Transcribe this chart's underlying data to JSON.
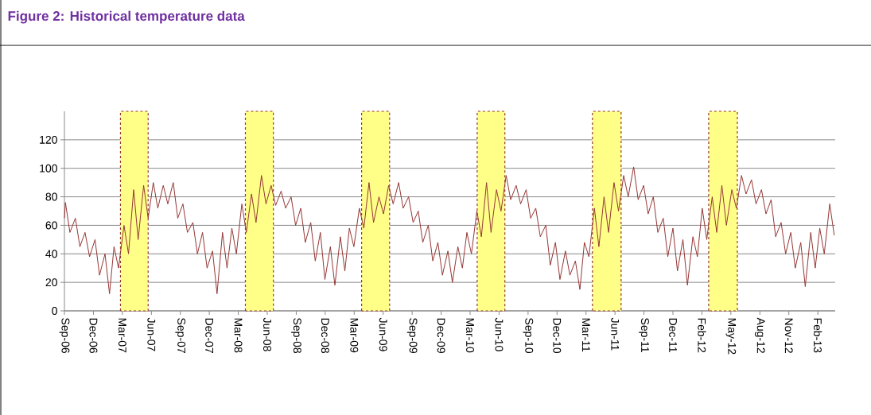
{
  "chart_data": {
    "type": "line",
    "title": "Figure 2: Historical temperature data",
    "x": [
      "2006-09-28",
      "2006-10-01",
      "2006-10-15",
      "2006-11-01",
      "2006-11-15",
      "2006-12-01",
      "2006-12-15",
      "2007-01-01",
      "2007-01-15",
      "2007-02-01",
      "2007-02-15",
      "2007-03-01",
      "2007-03-15",
      "2007-04-01",
      "2007-04-15",
      "2007-05-01",
      "2007-05-15",
      "2007-06-01",
      "2007-06-15",
      "2007-07-01",
      "2007-07-15",
      "2007-08-01",
      "2007-08-15",
      "2007-09-01",
      "2007-09-15",
      "2007-10-01",
      "2007-10-15",
      "2007-11-01",
      "2007-11-15",
      "2007-12-01",
      "2007-12-15",
      "2008-01-01",
      "2008-01-15",
      "2008-02-01",
      "2008-02-15",
      "2008-03-01",
      "2008-03-15",
      "2008-04-01",
      "2008-04-15",
      "2008-05-01",
      "2008-05-15",
      "2008-06-01",
      "2008-06-15",
      "2008-07-01",
      "2008-07-15",
      "2008-08-01",
      "2008-08-15",
      "2008-09-01",
      "2008-09-15",
      "2008-10-01",
      "2008-10-15",
      "2008-11-01",
      "2008-11-15",
      "2008-12-01",
      "2008-12-15",
      "2009-01-01",
      "2009-01-15",
      "2009-02-01",
      "2009-02-15",
      "2009-03-01",
      "2009-03-15",
      "2009-04-01",
      "2009-04-15",
      "2009-05-01",
      "2009-05-15",
      "2009-06-01",
      "2009-06-15",
      "2009-07-01",
      "2009-07-15",
      "2009-08-01",
      "2009-08-15",
      "2009-09-01",
      "2009-09-15",
      "2009-10-01",
      "2009-10-15",
      "2009-11-01",
      "2009-11-15",
      "2009-12-01",
      "2009-12-15",
      "2010-01-01",
      "2010-01-15",
      "2010-02-01",
      "2010-02-15",
      "2010-03-01",
      "2010-03-15",
      "2010-04-01",
      "2010-04-15",
      "2010-05-01",
      "2010-05-15",
      "2010-06-01",
      "2010-06-15",
      "2010-07-01",
      "2010-07-15",
      "2010-08-01",
      "2010-08-15",
      "2010-09-01",
      "2010-09-15",
      "2010-10-01",
      "2010-10-15",
      "2010-11-01",
      "2010-11-15",
      "2010-12-01",
      "2010-12-15",
      "2011-01-01",
      "2011-01-15",
      "2011-02-01",
      "2011-02-15",
      "2011-03-01",
      "2011-03-15",
      "2011-04-01",
      "2011-04-15",
      "2011-05-01",
      "2011-05-15",
      "2011-06-01",
      "2011-06-15",
      "2011-07-01",
      "2011-07-15",
      "2011-08-01",
      "2011-08-15",
      "2011-09-01",
      "2011-09-15",
      "2011-10-01",
      "2011-10-15",
      "2011-11-01",
      "2011-11-15",
      "2011-12-01",
      "2011-12-15",
      "2012-01-01",
      "2012-01-15",
      "2012-02-01",
      "2012-02-15",
      "2012-03-01",
      "2012-03-15",
      "2012-04-01",
      "2012-04-15",
      "2012-05-01",
      "2012-05-15",
      "2012-06-01",
      "2012-06-15",
      "2012-07-01",
      "2012-07-15",
      "2012-08-01",
      "2012-08-15",
      "2012-09-01",
      "2012-09-15",
      "2012-10-01",
      "2012-10-15",
      "2012-11-01",
      "2012-11-15",
      "2012-12-01",
      "2012-12-15",
      "2013-01-01",
      "2013-01-15",
      "2013-02-01",
      "2013-02-15",
      "2013-03-01",
      "2013-03-15",
      "2013-04-01",
      "2013-04-15"
    ],
    "series": [
      {
        "color": "#943634",
        "values": [
          65,
          76,
          55,
          65,
          45,
          55,
          38,
          50,
          25,
          40,
          12,
          45,
          30,
          60,
          40,
          85,
          50,
          88,
          65,
          90,
          72,
          88,
          75,
          90,
          65,
          75,
          55,
          62,
          40,
          55,
          30,
          42,
          12,
          55,
          30,
          58,
          40,
          75,
          55,
          82,
          62,
          95,
          75,
          88,
          74,
          84,
          72,
          80,
          60,
          72,
          48,
          62,
          35,
          55,
          22,
          45,
          18,
          52,
          28,
          58,
          45,
          72,
          58,
          90,
          62,
          80,
          68,
          88,
          75,
          90,
          72,
          80,
          62,
          70,
          48,
          60,
          35,
          48,
          25,
          42,
          20,
          45,
          30,
          55,
          40,
          70,
          52,
          90,
          55,
          85,
          70,
          95,
          78,
          88,
          75,
          85,
          65,
          72,
          52,
          60,
          32,
          48,
          22,
          42,
          25,
          35,
          15,
          48,
          38,
          72,
          45,
          80,
          55,
          90,
          70,
          95,
          80,
          101,
          78,
          88,
          68,
          80,
          55,
          65,
          38,
          58,
          28,
          50,
          18,
          52,
          38,
          72,
          50,
          80,
          55,
          88,
          60,
          85,
          72,
          95,
          82,
          92,
          75,
          85,
          68,
          78,
          52,
          62,
          40,
          55,
          30,
          48,
          17,
          55,
          30,
          58,
          40,
          75,
          53
        ]
      }
    ],
    "xlim": [
      "2006-09-28",
      "2013-04-18"
    ],
    "xticks": [
      {
        "value": "2006-09-28",
        "label": "Sep-06"
      },
      {
        "value": "2006-12-27",
        "label": "Dec-06"
      },
      {
        "value": "2007-03-27",
        "label": "Mar-07"
      },
      {
        "value": "2007-06-25",
        "label": "Jun-07"
      },
      {
        "value": "2007-09-23",
        "label": "Sep-07"
      },
      {
        "value": "2007-12-22",
        "label": "Dec-07"
      },
      {
        "value": "2008-03-21",
        "label": "Mar-08"
      },
      {
        "value": "2008-06-19",
        "label": "Jun-08"
      },
      {
        "value": "2008-09-17",
        "label": "Sep-08"
      },
      {
        "value": "2008-12-16",
        "label": "Dec-08"
      },
      {
        "value": "2009-03-16",
        "label": "Mar-09"
      },
      {
        "value": "2009-06-14",
        "label": "Jun-09"
      },
      {
        "value": "2009-09-12",
        "label": "Sep-09"
      },
      {
        "value": "2009-12-11",
        "label": "Dec-09"
      },
      {
        "value": "2010-03-11",
        "label": "Mar-10"
      },
      {
        "value": "2010-06-09",
        "label": "Jun-10"
      },
      {
        "value": "2010-09-07",
        "label": "Sep-10"
      },
      {
        "value": "2010-12-06",
        "label": "Dec-10"
      },
      {
        "value": "2011-03-06",
        "label": "Mar-11"
      },
      {
        "value": "2011-06-04",
        "label": "Jun-11"
      },
      {
        "value": "2011-09-02",
        "label": "Sep-11"
      },
      {
        "value": "2011-12-01",
        "label": "Dec-11"
      },
      {
        "value": "2012-02-29",
        "label": "Feb-12"
      },
      {
        "value": "2012-05-29",
        "label": "May-12"
      },
      {
        "value": "2012-08-27",
        "label": "Aug-12"
      },
      {
        "value": "2012-11-25",
        "label": "Nov-12"
      },
      {
        "value": "2013-02-23",
        "label": "Feb-13"
      }
    ],
    "ylim": [
      0,
      140
    ],
    "yticks": [
      0,
      20,
      40,
      60,
      80,
      100,
      120
    ],
    "grid": "y",
    "bands": [
      {
        "axis": "x",
        "from": "2007-03-21",
        "to": "2007-06-15",
        "color": "#ffff88"
      },
      {
        "axis": "x",
        "from": "2008-04-12",
        "to": "2008-07-08",
        "color": "#ffff88"
      },
      {
        "axis": "x",
        "from": "2009-04-08",
        "to": "2009-07-04",
        "color": "#ffff88"
      },
      {
        "axis": "x",
        "from": "2010-04-02",
        "to": "2010-06-27",
        "color": "#ffff88"
      },
      {
        "axis": "x",
        "from": "2011-03-26",
        "to": "2011-06-23",
        "color": "#ffff88"
      },
      {
        "axis": "x",
        "from": "2012-03-21",
        "to": "2012-06-18",
        "color": "#ffff88"
      }
    ]
  }
}
